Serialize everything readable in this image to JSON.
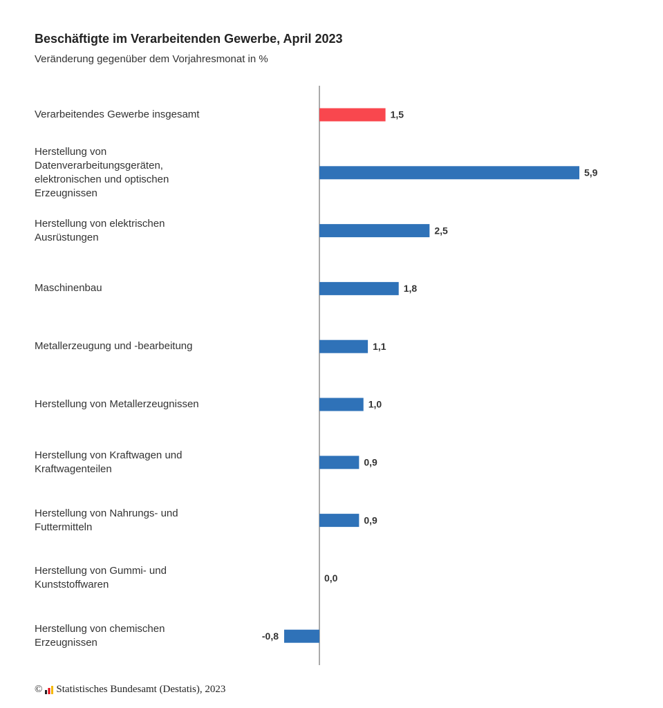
{
  "chart_data": {
    "type": "barh",
    "title": "Beschäftigte im Verarbeitenden Gewerbe, April 2023",
    "subtitle": "Veränderung gegenüber dem Vorjahresmonat in %",
    "categories": [
      "Verarbeitendes Gewerbe insgesamt",
      "Herstellung von Datenverarbeitungsgeräten, elektronischen und optischen Erzeugnissen",
      "Herstellung von elektrischen Ausrüstungen",
      "Maschinenbau",
      "Metallerzeugung und -bearbeitung",
      "Herstellung von Metallerzeugnissen",
      "Herstellung von Kraftwagen und Kraftwagenteilen",
      "Herstellung von Nahrungs- und Futtermitteln",
      "Herstellung von Gummi- und Kunststoffwaren",
      "Herstellung von chemischen Erzeugnissen"
    ],
    "values": [
      1.5,
      5.9,
      2.5,
      1.8,
      1.1,
      1.0,
      0.9,
      0.9,
      0.0,
      -0.8
    ],
    "value_labels": [
      "1,5",
      "5,9",
      "2,5",
      "1,8",
      "1,1",
      "1,0",
      "0,9",
      "0,9",
      "0,0",
      "-0,8"
    ],
    "colors": [
      "#f9474e",
      "#2f72b8",
      "#2f72b8",
      "#2f72b8",
      "#2f72b8",
      "#2f72b8",
      "#2f72b8",
      "#2f72b8",
      "#2f72b8",
      "#2f72b8"
    ],
    "copyright": "©",
    "source": "Statistisches Bundesamt (Destatis), 2023"
  }
}
